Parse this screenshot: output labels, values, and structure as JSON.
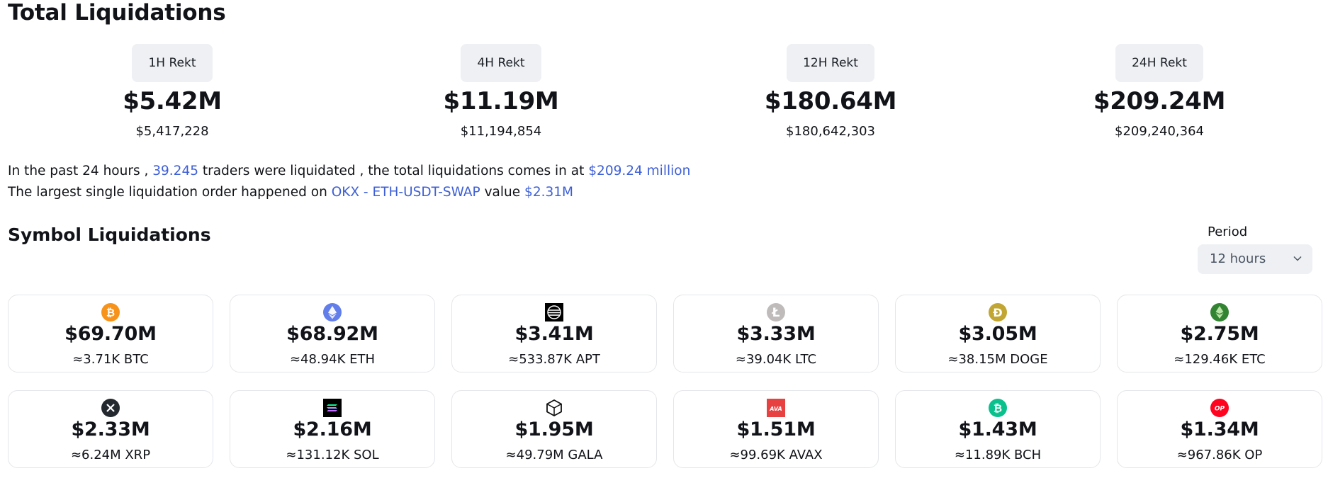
{
  "title": "Total Liquidations",
  "rekt": [
    {
      "label": "1H Rekt",
      "value": "$5.42M",
      "exact": "$5,417,228"
    },
    {
      "label": "4H Rekt",
      "value": "$11.19M",
      "exact": "$11,194,854"
    },
    {
      "label": "12H Rekt",
      "value": "$180.64M",
      "exact": "$180,642,303"
    },
    {
      "label": "24H Rekt",
      "value": "$209.24M",
      "exact": "$209,240,364"
    }
  ],
  "summary": {
    "l1_a": "In the past 24 hours ,",
    "l1_traders": "39.245",
    "l1_b": "traders were liquidated , the total liquidations comes in at",
    "l1_total": "$209.24 million",
    "l2_a": "The largest single liquidation order happened on",
    "l2_order": "OKX - ETH-USDT-SWAP",
    "l2_b": "value",
    "l2_value": "$2.31M"
  },
  "symbols_title": "Symbol Liquidations",
  "period": {
    "label": "Period",
    "selected": "12 hours"
  },
  "symbols": [
    {
      "amount": "$69.70M",
      "qty": "≈3.71K BTC",
      "icon": "btc-icon",
      "color": "#f7931a"
    },
    {
      "amount": "$68.92M",
      "qty": "≈48.94K ETH",
      "icon": "eth-icon",
      "color": "#627eea"
    },
    {
      "amount": "$3.41M",
      "qty": "≈533.87K APT",
      "icon": "apt-icon",
      "color": "#000000"
    },
    {
      "amount": "$3.33M",
      "qty": "≈39.04K LTC",
      "icon": "ltc-icon",
      "color": "#bfbbbb"
    },
    {
      "amount": "$3.05M",
      "qty": "≈38.15M DOGE",
      "icon": "doge-icon",
      "color": "#c2a633"
    },
    {
      "amount": "$2.75M",
      "qty": "≈129.46K ETC",
      "icon": "etc-icon",
      "color": "#328332"
    },
    {
      "amount": "$2.33M",
      "qty": "≈6.24M XRP",
      "icon": "xrp-icon",
      "color": "#23292f"
    },
    {
      "amount": "$2.16M",
      "qty": "≈131.12K SOL",
      "icon": "sol-icon",
      "color": "#000000"
    },
    {
      "amount": "$1.95M",
      "qty": "≈49.79M GALA",
      "icon": "gala-icon",
      "color": "#000000"
    },
    {
      "amount": "$1.51M",
      "qty": "≈99.69K AVAX",
      "icon": "avax-icon",
      "color": "#e84142"
    },
    {
      "amount": "$1.43M",
      "qty": "≈11.89K BCH",
      "icon": "bch-icon",
      "color": "#0ac18e"
    },
    {
      "amount": "$1.34M",
      "qty": "≈967.86K OP",
      "icon": "op-icon",
      "color": "#ff0420"
    }
  ]
}
